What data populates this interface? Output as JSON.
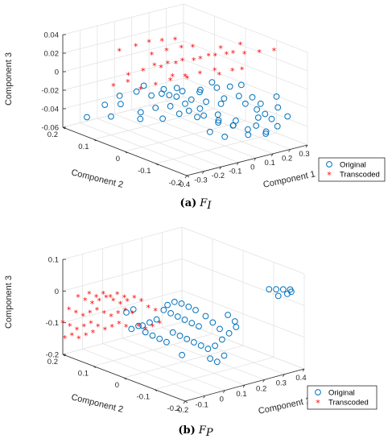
{
  "figure": {
    "panels": [
      {
        "caption_letter": "(a)",
        "caption_symbol": "F",
        "caption_sub": "I"
      },
      {
        "caption_letter": "(b)",
        "caption_symbol": "F",
        "caption_sub": "P"
      }
    ]
  },
  "colors": {
    "original": "#0072BD",
    "transcoded": "#FF0000"
  },
  "chart_data": [
    {
      "type": "scatter",
      "projection": "3d",
      "xlabel": "Component 1",
      "ylabel": "Component 2",
      "zlabel": "Component 3",
      "xlim": [
        -0.4,
        0.3
      ],
      "ylim": [
        -0.2,
        0.2
      ],
      "zlim": [
        -0.06,
        0.04
      ],
      "xticks": [
        "-0.4",
        "-0.3",
        "-0.2",
        "-0.1",
        "0",
        "0.1",
        "0.2",
        "0.3"
      ],
      "yticks": [
        "-0.2",
        "-0.1",
        "0",
        "0.1",
        "0.2"
      ],
      "zticks": [
        "-0.06",
        "-0.04",
        "-0.02",
        "0",
        "0.02",
        "0.04"
      ],
      "grid": true,
      "legend": {
        "position": "bottom-right",
        "entries": [
          "Original",
          "Transcoded"
        ]
      },
      "series": [
        {
          "name": "Original",
          "marker": "circle",
          "points": [
            [
              -0.2,
              0.05,
              -0.005
            ],
            [
              -0.15,
              0.02,
              -0.012
            ],
            [
              -0.1,
              0.0,
              -0.015
            ],
            [
              -0.05,
              -0.02,
              -0.018
            ],
            [
              0.0,
              -0.04,
              -0.02
            ],
            [
              0.05,
              -0.06,
              -0.022
            ],
            [
              -0.25,
              0.1,
              -0.02
            ],
            [
              -0.3,
              0.12,
              -0.03
            ],
            [
              -0.28,
              0.08,
              -0.025
            ],
            [
              -0.2,
              0.06,
              -0.035
            ],
            [
              -0.15,
              0.04,
              -0.03
            ],
            [
              -0.1,
              0.02,
              -0.028
            ],
            [
              -0.05,
              0.0,
              -0.025
            ],
            [
              0.0,
              -0.02,
              -0.03
            ],
            [
              0.05,
              -0.05,
              -0.035
            ],
            [
              0.1,
              -0.08,
              -0.04
            ],
            [
              0.12,
              -0.1,
              -0.02
            ],
            [
              0.15,
              -0.12,
              -0.025
            ],
            [
              0.18,
              -0.13,
              -0.03
            ],
            [
              0.2,
              -0.14,
              -0.035
            ],
            [
              0.15,
              -0.15,
              -0.045
            ],
            [
              0.1,
              -0.12,
              -0.05
            ],
            [
              0.05,
              -0.1,
              -0.04
            ],
            [
              0.0,
              -0.08,
              -0.035
            ],
            [
              -0.05,
              -0.06,
              -0.03
            ],
            [
              -0.1,
              -0.04,
              -0.025
            ],
            [
              -0.35,
              0.15,
              -0.045
            ],
            [
              -0.3,
              0.1,
              -0.04
            ],
            [
              -0.22,
              0.05,
              -0.04
            ],
            [
              -0.18,
              0.0,
              -0.035
            ],
            [
              0.08,
              -0.03,
              -0.01
            ],
            [
              0.12,
              -0.05,
              -0.008
            ],
            [
              0.15,
              -0.07,
              -0.005
            ],
            [
              0.1,
              -0.09,
              -0.012
            ],
            [
              0.05,
              -0.07,
              -0.015
            ],
            [
              -0.02,
              -0.03,
              -0.01
            ],
            [
              -0.08,
              0.01,
              -0.008
            ],
            [
              -0.12,
              0.03,
              -0.01
            ],
            [
              0.2,
              -0.16,
              -0.02
            ],
            [
              0.22,
              -0.18,
              -0.028
            ],
            [
              0.18,
              -0.17,
              -0.038
            ],
            [
              0.13,
              -0.16,
              -0.045
            ],
            [
              0.0,
              -0.1,
              -0.05
            ],
            [
              -0.05,
              -0.08,
              -0.045
            ],
            [
              0.07,
              -0.02,
              -0.005
            ],
            [
              0.02,
              -0.01,
              -0.012
            ],
            [
              -0.03,
              0.02,
              -0.015
            ],
            [
              -0.07,
              0.04,
              -0.02
            ],
            [
              -0.12,
              0.07,
              -0.022
            ],
            [
              -0.17,
              0.09,
              -0.018
            ],
            [
              0.16,
              -0.1,
              -0.015
            ],
            [
              0.19,
              -0.11,
              -0.022
            ],
            [
              0.14,
              -0.13,
              -0.032
            ],
            [
              0.11,
              -0.14,
              -0.038
            ],
            [
              0.08,
              -0.13,
              -0.042
            ],
            [
              0.03,
              -0.11,
              -0.038
            ],
            [
              -0.02,
              -0.09,
              -0.035
            ],
            [
              -0.07,
              -0.05,
              -0.032
            ],
            [
              -0.12,
              -0.02,
              -0.03
            ],
            [
              0.21,
              -0.15,
              -0.01
            ]
          ]
        },
        {
          "name": "Transcoded",
          "marker": "asterisk",
          "points": [
            [
              -0.1,
              0.05,
              0.01
            ],
            [
              -0.05,
              0.03,
              0.015
            ],
            [
              0.0,
              0.0,
              0.02
            ],
            [
              0.05,
              -0.02,
              0.025
            ],
            [
              0.1,
              -0.05,
              0.028
            ],
            [
              0.15,
              -0.08,
              0.03
            ],
            [
              0.2,
              -0.1,
              0.032
            ],
            [
              0.25,
              -0.12,
              0.034
            ],
            [
              -0.15,
              0.08,
              0.005
            ],
            [
              -0.2,
              0.1,
              0.0
            ],
            [
              -0.12,
              0.06,
              0.012
            ],
            [
              -0.08,
              0.04,
              0.015
            ],
            [
              -0.03,
              0.02,
              0.018
            ],
            [
              0.02,
              -0.01,
              0.022
            ],
            [
              0.07,
              -0.03,
              0.025
            ],
            [
              0.12,
              -0.06,
              0.03
            ],
            [
              -0.1,
              0.02,
              0.0
            ],
            [
              -0.05,
              0.0,
              0.005
            ],
            [
              0.0,
              -0.02,
              0.008
            ],
            [
              0.05,
              -0.04,
              0.012
            ],
            [
              -0.15,
              0.04,
              -0.005
            ],
            [
              -0.2,
              0.06,
              -0.01
            ],
            [
              -0.1,
              0.08,
              0.02
            ],
            [
              -0.05,
              0.06,
              0.025
            ],
            [
              0.0,
              0.04,
              0.028
            ],
            [
              0.03,
              0.02,
              0.03
            ],
            [
              -0.08,
              0.1,
              0.03
            ],
            [
              -0.12,
              0.12,
              0.025
            ],
            [
              -0.18,
              0.14,
              0.02
            ],
            [
              0.08,
              -0.08,
              0.015
            ],
            [
              0.1,
              -0.1,
              0.018
            ],
            [
              0.04,
              -0.06,
              0.01
            ],
            [
              -0.02,
              0.01,
              0.0
            ],
            [
              -0.07,
              0.03,
              0.002
            ],
            [
              -0.25,
              0.12,
              -0.012
            ],
            [
              -0.22,
              0.09,
              -0.005
            ],
            [
              0.18,
              -0.05,
              0.035
            ],
            [
              0.12,
              -0.02,
              0.03
            ],
            [
              -0.04,
              0.08,
              0.032
            ],
            [
              0.0,
              0.06,
              0.034
            ]
          ]
        }
      ]
    },
    {
      "type": "scatter",
      "projection": "3d",
      "xlabel": "Component 1",
      "ylabel": "Component 2",
      "zlabel": "Component 3",
      "xlim": [
        -0.2,
        0.4
      ],
      "ylim": [
        -0.2,
        0.2
      ],
      "zlim": [
        -0.2,
        0.1
      ],
      "xticks": [
        "-0.2",
        "-0.1",
        "0",
        "0.1",
        "0.2",
        "0.3",
        "0.4"
      ],
      "yticks": [
        "-0.2",
        "-0.1",
        "0",
        "0.1",
        "0.2"
      ],
      "zticks": [
        "-0.2",
        "-0.1",
        "0",
        "0.1"
      ],
      "grid": true,
      "legend": {
        "position": "bottom-right",
        "entries": [
          "Original",
          "Transcoded"
        ]
      },
      "series": [
        {
          "name": "Original",
          "marker": "circle",
          "points": [
            [
              0.3,
              -0.15,
              0.05
            ],
            [
              0.32,
              -0.16,
              0.05
            ],
            [
              0.34,
              -0.17,
              0.05
            ],
            [
              0.36,
              -0.18,
              0.05
            ],
            [
              0.3,
              -0.18,
              0.04
            ],
            [
              0.33,
              -0.19,
              0.045
            ],
            [
              0.35,
              -0.19,
              0.048
            ],
            [
              0.0,
              0.0,
              -0.02
            ],
            [
              0.02,
              -0.01,
              -0.03
            ],
            [
              0.04,
              -0.02,
              -0.04
            ],
            [
              0.06,
              -0.03,
              -0.05
            ],
            [
              0.08,
              -0.04,
              -0.06
            ],
            [
              0.1,
              -0.05,
              -0.07
            ],
            [
              -0.02,
              0.01,
              -0.05
            ],
            [
              -0.04,
              0.02,
              -0.06
            ],
            [
              -0.06,
              0.03,
              -0.07
            ],
            [
              0.0,
              -0.03,
              -0.08
            ],
            [
              0.02,
              -0.04,
              -0.09
            ],
            [
              0.04,
              -0.05,
              -0.1
            ],
            [
              0.06,
              -0.06,
              -0.11
            ],
            [
              0.08,
              -0.07,
              -0.12
            ],
            [
              0.1,
              -0.08,
              -0.13
            ],
            [
              0.12,
              -0.09,
              -0.12
            ],
            [
              0.14,
              -0.1,
              -0.1
            ],
            [
              0.16,
              -0.11,
              -0.08
            ],
            [
              0.18,
              -0.12,
              -0.06
            ],
            [
              0.05,
              0.02,
              -0.02
            ],
            [
              0.07,
              0.01,
              -0.01
            ],
            [
              0.09,
              0.0,
              -0.015
            ],
            [
              0.11,
              -0.01,
              -0.025
            ],
            [
              0.13,
              -0.02,
              -0.035
            ],
            [
              -0.05,
              0.05,
              -0.08
            ],
            [
              -0.07,
              0.06,
              -0.09
            ],
            [
              -0.03,
              0.04,
              -0.1
            ],
            [
              -0.01,
              0.03,
              -0.11
            ],
            [
              0.01,
              0.02,
              -0.12
            ],
            [
              0.03,
              0.01,
              -0.13
            ],
            [
              0.15,
              -0.04,
              -0.05
            ],
            [
              0.17,
              -0.05,
              -0.07
            ],
            [
              0.19,
              -0.06,
              -0.09
            ],
            [
              0.08,
              -0.1,
              -0.15
            ],
            [
              0.1,
              -0.11,
              -0.16
            ],
            [
              0.12,
              -0.12,
              -0.14
            ],
            [
              0.2,
              -0.08,
              -0.04
            ],
            [
              0.22,
              -0.09,
              -0.06
            ],
            [
              -0.08,
              0.07,
              -0.04
            ],
            [
              -0.06,
              0.06,
              -0.03
            ],
            [
              0.0,
              -0.06,
              -0.14
            ]
          ]
        },
        {
          "name": "Transcoded",
          "marker": "asterisk",
          "points": [
            [
              -0.2,
              0.15,
              0.0
            ],
            [
              -0.18,
              0.14,
              -0.01
            ],
            [
              -0.16,
              0.13,
              -0.02
            ],
            [
              -0.14,
              0.12,
              -0.01
            ],
            [
              -0.12,
              0.11,
              0.0
            ],
            [
              -0.1,
              0.1,
              -0.01
            ],
            [
              -0.08,
              0.09,
              -0.02
            ],
            [
              -0.06,
              0.08,
              -0.01
            ],
            [
              -0.04,
              0.07,
              0.0
            ],
            [
              -0.02,
              0.06,
              -0.01
            ],
            [
              -0.2,
              0.18,
              -0.05
            ],
            [
              -0.18,
              0.17,
              -0.06
            ],
            [
              -0.16,
              0.16,
              -0.07
            ],
            [
              -0.14,
              0.15,
              -0.06
            ],
            [
              -0.12,
              0.14,
              -0.05
            ],
            [
              -0.1,
              0.13,
              -0.06
            ],
            [
              -0.08,
              0.12,
              -0.07
            ],
            [
              -0.06,
              0.11,
              -0.06
            ],
            [
              -0.04,
              0.1,
              -0.05
            ],
            [
              -0.02,
              0.09,
              -0.06
            ],
            [
              -0.2,
              0.2,
              -0.1
            ],
            [
              -0.18,
              0.19,
              -0.11
            ],
            [
              -0.16,
              0.18,
              -0.12
            ],
            [
              -0.14,
              0.17,
              -0.11
            ],
            [
              -0.12,
              0.16,
              -0.1
            ],
            [
              -0.1,
              0.15,
              -0.11
            ],
            [
              -0.08,
              0.14,
              -0.12
            ],
            [
              -0.06,
              0.13,
              -0.11
            ],
            [
              -0.04,
              0.12,
              -0.1
            ],
            [
              -0.02,
              0.11,
              -0.11
            ],
            [
              0.0,
              0.05,
              -0.03
            ],
            [
              0.02,
              0.04,
              -0.04
            ],
            [
              -0.19,
              0.12,
              0.02
            ],
            [
              -0.17,
              0.11,
              0.01
            ],
            [
              -0.15,
              0.1,
              0.02
            ],
            [
              -0.13,
              0.09,
              0.01
            ],
            [
              -0.11,
              0.08,
              0.02
            ],
            [
              -0.09,
              0.07,
              0.01
            ],
            [
              -0.05,
              0.05,
              -0.08
            ],
            [
              -0.03,
              0.04,
              -0.09
            ],
            [
              -0.01,
              0.03,
              -0.08
            ],
            [
              0.01,
              0.02,
              -0.07
            ],
            [
              -0.19,
              0.2,
              -0.15
            ],
            [
              -0.17,
              0.19,
              -0.14
            ],
            [
              -0.15,
              0.18,
              -0.15
            ],
            [
              -0.13,
              0.17,
              -0.14
            ],
            [
              -0.11,
              0.16,
              -0.13
            ]
          ]
        }
      ]
    }
  ]
}
